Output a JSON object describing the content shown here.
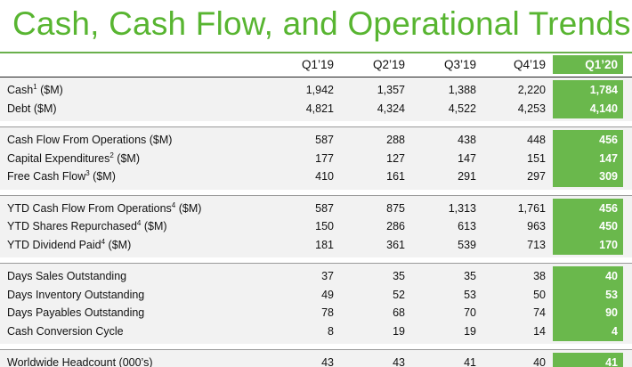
{
  "title": "Cash, Cash Flow, and Operational Trends",
  "colors": {
    "accent": "#6ab84c",
    "title": "#58b531",
    "row_bg": "#f2f2f2"
  },
  "columns": [
    "Q1’19",
    "Q2’19",
    "Q3’19",
    "Q4’19",
    "Q1’20"
  ],
  "groups": [
    {
      "rows": [
        {
          "label": "Cash",
          "sup": "1",
          "unit": " ($M)",
          "values": [
            "1,942",
            "1,357",
            "1,388",
            "2,220",
            "1,784"
          ]
        },
        {
          "label": "Debt ($M)",
          "sup": "",
          "unit": "",
          "values": [
            "4,821",
            "4,324",
            "4,522",
            "4,253",
            "4,140"
          ]
        }
      ]
    },
    {
      "rows": [
        {
          "label": "Cash Flow From Operations ($M)",
          "sup": "",
          "unit": "",
          "values": [
            "587",
            "288",
            "438",
            "448",
            "456"
          ]
        },
        {
          "label": "Capital Expenditures",
          "sup": "2",
          "unit": " ($M)",
          "values": [
            "177",
            "127",
            "147",
            "151",
            "147"
          ]
        },
        {
          "label": "Free Cash Flow",
          "sup": "3",
          "unit": " ($M)",
          "values": [
            "410",
            "161",
            "291",
            "297",
            "309"
          ]
        }
      ]
    },
    {
      "rows": [
        {
          "label": "YTD Cash Flow From Operations",
          "sup": "4",
          "unit": " ($M)",
          "values": [
            "587",
            "875",
            "1,313",
            "1,761",
            "456"
          ]
        },
        {
          "label": "YTD Shares Repurchased",
          "sup": "4",
          "unit": " ($M)",
          "values": [
            "150",
            "286",
            "613",
            "963",
            "450"
          ]
        },
        {
          "label": "YTD Dividend Paid",
          "sup": "4",
          "unit": " ($M)",
          "values": [
            "181",
            "361",
            "539",
            "713",
            "170"
          ]
        }
      ]
    },
    {
      "rows": [
        {
          "label": "Days Sales Outstanding",
          "sup": "",
          "unit": "",
          "values": [
            "37",
            "35",
            "35",
            "38",
            "40"
          ]
        },
        {
          "label": "Days Inventory Outstanding",
          "sup": "",
          "unit": "",
          "values": [
            "49",
            "52",
            "53",
            "50",
            "53"
          ]
        },
        {
          "label": "Days Payables Outstanding",
          "sup": "",
          "unit": "",
          "values": [
            "78",
            "68",
            "70",
            "74",
            "90"
          ]
        },
        {
          "label": "Cash Conversion Cycle",
          "sup": "",
          "unit": "",
          "values": [
            "8",
            "19",
            "19",
            "14",
            "4"
          ]
        }
      ]
    },
    {
      "rows": [
        {
          "label": "Worldwide Headcount (000’s)",
          "sup": "",
          "unit": "",
          "values": [
            "43",
            "43",
            "41",
            "40",
            "41"
          ]
        }
      ]
    }
  ]
}
